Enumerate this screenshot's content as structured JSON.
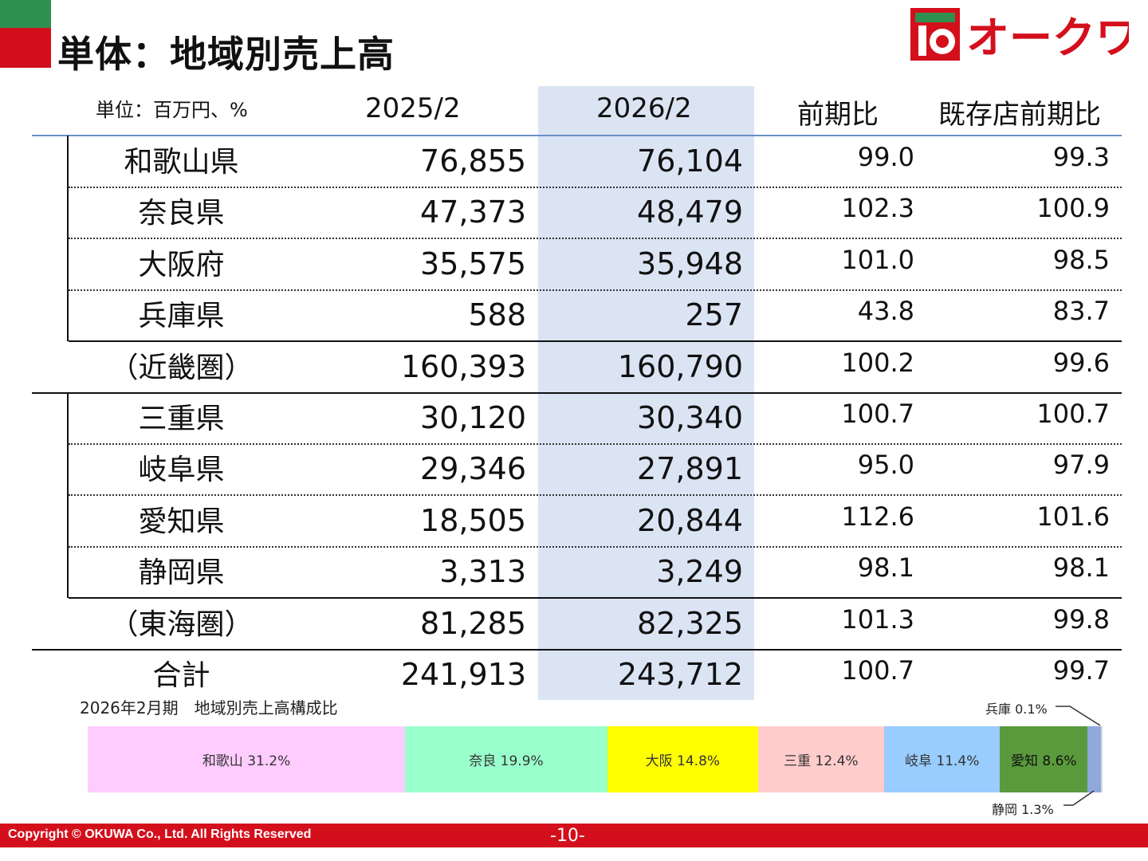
{
  "title": "単体：地域別売上高",
  "logo": {
    "text": "オークワ"
  },
  "unit_label": "単位：百万円、%",
  "columns": [
    "2025/2",
    "2026/2",
    "前期比",
    "既存店前期比"
  ],
  "rows": [
    {
      "name": "和歌山県",
      "prev": "76,855",
      "curr": "76,104",
      "yoy": "99.0",
      "existing": "99.3"
    },
    {
      "name": "奈良県",
      "prev": "47,373",
      "curr": "48,479",
      "yoy": "102.3",
      "existing": "100.9"
    },
    {
      "name": "大阪府",
      "prev": "35,575",
      "curr": "35,948",
      "yoy": "101.0",
      "existing": "98.5"
    },
    {
      "name": "兵庫県",
      "prev": "588",
      "curr": "257",
      "yoy": "43.8",
      "existing": "83.7"
    },
    {
      "name": "（近畿圏）",
      "prev": "160,393",
      "curr": "160,790",
      "yoy": "100.2",
      "existing": "99.6"
    },
    {
      "name": "三重県",
      "prev": "30,120",
      "curr": "30,340",
      "yoy": "100.7",
      "existing": "100.7"
    },
    {
      "name": "岐阜県",
      "prev": "29,346",
      "curr": "27,891",
      "yoy": "95.0",
      "existing": "97.9"
    },
    {
      "name": "愛知県",
      "prev": "18,505",
      "curr": "20,844",
      "yoy": "112.6",
      "existing": "101.6"
    },
    {
      "name": "静岡県",
      "prev": "3,313",
      "curr": "3,249",
      "yoy": "98.1",
      "existing": "98.1"
    },
    {
      "name": "（東海圏）",
      "prev": "81,285",
      "curr": "82,325",
      "yoy": "101.3",
      "existing": "99.8"
    },
    {
      "name": "合計",
      "prev": "241,913",
      "curr": "243,712",
      "yoy": "100.7",
      "existing": "99.7"
    }
  ],
  "composition": {
    "title": "2026年2月期　地域別売上高構成比",
    "segments": [
      {
        "label": "和歌山 31.2%",
        "share": 31.2,
        "color": "#ffccff"
      },
      {
        "label": "奈良 19.9%",
        "share": 19.9,
        "color": "#99ffcc"
      },
      {
        "label": "大阪 14.8%",
        "share": 14.8,
        "color": "#ffff00"
      },
      {
        "label": "三重 12.4%",
        "share": 12.4,
        "color": "#ffcccc"
      },
      {
        "label": "岐阜 11.4%",
        "share": 11.4,
        "color": "#99ccff"
      },
      {
        "label": "愛知 8.6%",
        "share": 8.6,
        "color": "#5a9a3c"
      },
      {
        "label": "",
        "share": 1.3,
        "color": "#8ea9db"
      },
      {
        "label": "",
        "share": 0.1,
        "color": "#d9d9d9"
      }
    ],
    "callout_hyogo": "兵庫 0.1%",
    "callout_shizuoka": "静岡 1.3%"
  },
  "footer": {
    "copyright": "Copyright © OKUWA Co., Ltd. All Rights Reserved",
    "page": "-10-"
  }
}
